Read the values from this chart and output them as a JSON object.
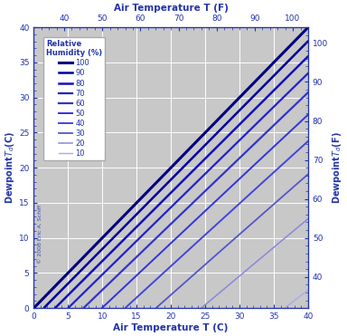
{
  "title_top": "Air Temperature T (F)",
  "xlabel": "Air Temperature T (C)",
  "ylabel_left": "Dewpoint T_d (C)",
  "ylabel_right": "Dewpoint T_d (F)",
  "x_c_min": 0,
  "x_c_max": 40,
  "y_c_min": 0,
  "y_c_max": 40,
  "background_color": "#c8c8c8",
  "grid_color": "#ffffff",
  "font_color": "#2233aa",
  "legend_title_line1": "Relative",
  "legend_title_line2": "Humidity (%)",
  "humidities": [
    100,
    90,
    80,
    70,
    60,
    50,
    40,
    30,
    20,
    10
  ],
  "line_colors": {
    "100": "#00007f",
    "90": "#00009f",
    "80": "#1111bb",
    "70": "#2222cc",
    "60": "#3333cc",
    "50": "#3333dd",
    "40": "#4444dd",
    "30": "#5555cc",
    "20": "#8888dd",
    "10": "#aaaaee"
  },
  "line_widths": {
    "100": 2.2,
    "90": 1.8,
    "80": 1.8,
    "70": 1.6,
    "60": 1.6,
    "50": 1.4,
    "40": 1.4,
    "30": 1.3,
    "20": 1.1,
    "10": 1.0
  },
  "copyright_text": "© 2008 Eric A. Schiff"
}
